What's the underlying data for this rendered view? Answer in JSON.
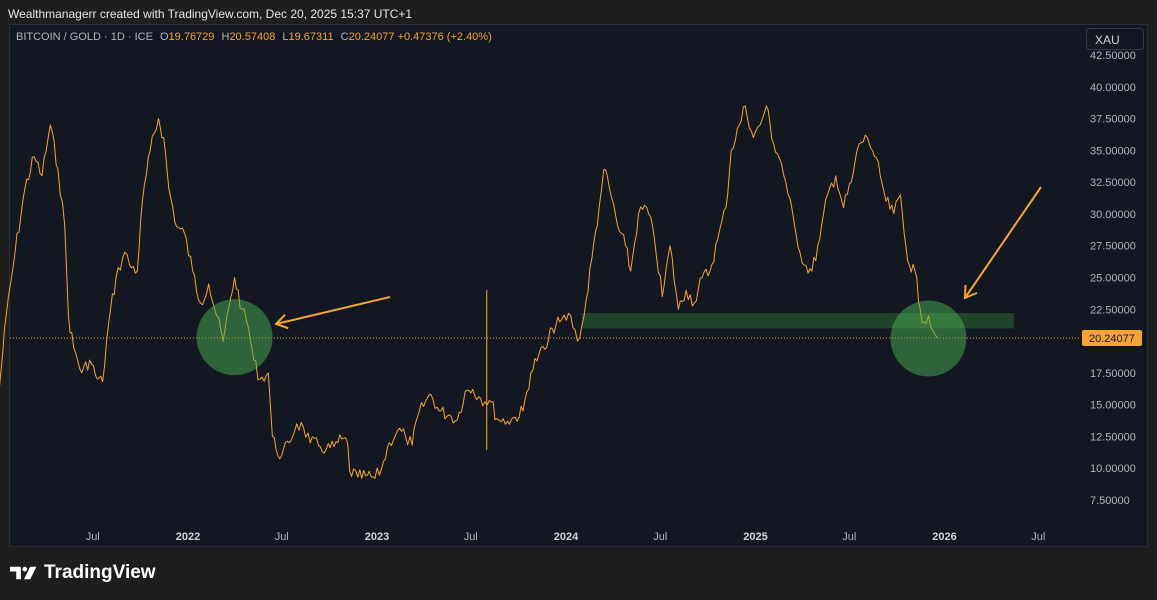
{
  "topbar": {
    "text": "Wealthmanagerr created with TradingView.com, Dec 20, 2025 15:37 UTC+1"
  },
  "header": {
    "symbol": "BITCOIN / GOLD · 1D · ICE",
    "o_label": "O",
    "o_value": "19.76729",
    "h_label": "H",
    "h_value": "20.57408",
    "l_label": "L",
    "l_value": "19.67311",
    "c_label": "C",
    "c_value": "20.24077",
    "change": "+0.47376 (+2.40%)"
  },
  "xau_button": "XAU",
  "footer": {
    "brand": "TradingView"
  },
  "colors": {
    "price": "#f7a531",
    "background": "#131722",
    "zone": "#2e7d32",
    "circle": "#4caf50",
    "arrow": "#f7a531"
  },
  "chart_data": {
    "type": "line",
    "y_ticks": [
      "7.50000",
      "10.00000",
      "12.50000",
      "15.00000",
      "17.50000",
      "20.00000",
      "22.50000",
      "25.00000",
      "27.50000",
      "30.00000",
      "32.50000",
      "35.00000",
      "37.50000",
      "40.00000",
      "42.50000"
    ],
    "y_tick_values": [
      7.5,
      10,
      12.5,
      15,
      17.5,
      20,
      22.5,
      25,
      27.5,
      30,
      32.5,
      35,
      37.5,
      40,
      42.5
    ],
    "ylim": [
      6.5,
      43.5
    ],
    "x_ticks": [
      "Jul",
      "2022",
      "Jul",
      "2023",
      "Jul",
      "2024",
      "Jul",
      "2025",
      "Jul",
      "2026",
      "Jul"
    ],
    "x_tick_dates": [
      "2021-07-01",
      "2022-01-01",
      "2022-07-01",
      "2023-01-01",
      "2023-07-01",
      "2024-01-01",
      "2024-07-01",
      "2025-01-01",
      "2025-07-01",
      "2026-01-01",
      "2026-07-01"
    ],
    "bold_x_ticks": [
      "2022",
      "2023",
      "2024",
      "2025",
      "2026"
    ],
    "last_price_label": "20.24077",
    "last_price": 20.24077,
    "support_zone": {
      "from": "2024-02-01",
      "to": "2026-05-15",
      "low": 21.0,
      "high": 22.2
    },
    "highlight_circles": [
      {
        "date": "2022-04-01",
        "value": 20.3
      },
      {
        "date": "2025-12-01",
        "value": 20.2
      }
    ],
    "vertical_marker_date": "2023-08-01",
    "series": [
      {
        "points": [
          [
            "2021-01-01",
            16.0
          ],
          [
            "2021-01-15",
            22.0
          ],
          [
            "2021-02-01",
            27.0
          ],
          [
            "2021-02-20",
            32.0
          ],
          [
            "2021-03-10",
            34.5
          ],
          [
            "2021-03-25",
            33.0
          ],
          [
            "2021-04-10",
            37.0
          ],
          [
            "2021-04-25",
            33.5
          ],
          [
            "2021-05-08",
            29.0
          ],
          [
            "2021-05-15",
            22.0
          ],
          [
            "2021-05-25",
            19.5
          ],
          [
            "2021-06-10",
            17.5
          ],
          [
            "2021-06-25",
            18.5
          ],
          [
            "2021-07-10",
            17.0
          ],
          [
            "2021-07-20",
            16.8
          ],
          [
            "2021-08-01",
            21.5
          ],
          [
            "2021-08-15",
            25.0
          ],
          [
            "2021-09-01",
            27.0
          ],
          [
            "2021-09-10",
            26.0
          ],
          [
            "2021-09-25",
            25.5
          ],
          [
            "2021-10-05",
            31.0
          ],
          [
            "2021-10-20",
            35.0
          ],
          [
            "2021-11-05",
            37.5
          ],
          [
            "2021-11-15",
            36.0
          ],
          [
            "2021-11-25",
            32.0
          ],
          [
            "2021-12-10",
            29.0
          ],
          [
            "2021-12-25",
            28.5
          ],
          [
            "2022-01-10",
            25.5
          ],
          [
            "2022-01-25",
            23.0
          ],
          [
            "2022-02-10",
            24.5
          ],
          [
            "2022-02-25",
            22.0
          ],
          [
            "2022-03-10",
            20.0
          ],
          [
            "2022-03-25",
            23.5
          ],
          [
            "2022-04-01",
            25.0
          ],
          [
            "2022-04-15",
            22.5
          ],
          [
            "2022-04-28",
            21.0
          ],
          [
            "2022-05-08",
            18.5
          ],
          [
            "2022-05-20",
            17.0
          ],
          [
            "2022-06-05",
            17.5
          ],
          [
            "2022-06-13",
            12.5
          ],
          [
            "2022-06-20",
            11.5
          ],
          [
            "2022-07-01",
            11.0
          ],
          [
            "2022-07-15",
            12.0
          ],
          [
            "2022-07-30",
            13.5
          ],
          [
            "2022-08-12",
            13.2
          ],
          [
            "2022-08-25",
            12.0
          ],
          [
            "2022-09-10",
            11.8
          ],
          [
            "2022-09-25",
            11.5
          ],
          [
            "2022-10-10",
            11.7
          ],
          [
            "2022-10-25",
            12.3
          ],
          [
            "2022-11-05",
            12.0
          ],
          [
            "2022-11-09",
            9.8
          ],
          [
            "2022-11-25",
            9.3
          ],
          [
            "2022-12-10",
            9.4
          ],
          [
            "2022-12-28",
            9.2
          ],
          [
            "2023-01-10",
            10.0
          ],
          [
            "2023-01-25",
            12.0
          ],
          [
            "2023-02-10",
            13.0
          ],
          [
            "2023-02-25",
            12.5
          ],
          [
            "2023-03-10",
            11.8
          ],
          [
            "2023-03-20",
            14.0
          ],
          [
            "2023-04-05",
            15.3
          ],
          [
            "2023-04-15",
            15.8
          ],
          [
            "2023-05-01",
            14.5
          ],
          [
            "2023-05-20",
            14.2
          ],
          [
            "2023-06-05",
            13.8
          ],
          [
            "2023-06-20",
            16.0
          ],
          [
            "2023-07-05",
            16.2
          ],
          [
            "2023-07-20",
            15.5
          ],
          [
            "2023-08-10",
            15.2
          ],
          [
            "2023-08-20",
            13.9
          ],
          [
            "2023-09-10",
            13.7
          ],
          [
            "2023-09-25",
            14.0
          ],
          [
            "2023-10-10",
            14.5
          ],
          [
            "2023-10-25",
            17.5
          ],
          [
            "2023-11-10",
            19.0
          ],
          [
            "2023-11-25",
            19.5
          ],
          [
            "2023-12-05",
            21.0
          ],
          [
            "2023-12-20",
            21.5
          ],
          [
            "2024-01-10",
            22.0
          ],
          [
            "2024-01-23",
            20.0
          ],
          [
            "2024-02-05",
            22.0
          ],
          [
            "2024-02-20",
            26.5
          ],
          [
            "2024-03-05",
            30.5
          ],
          [
            "2024-03-14",
            33.5
          ],
          [
            "2024-03-25",
            32.0
          ],
          [
            "2024-04-10",
            29.0
          ],
          [
            "2024-04-25",
            27.5
          ],
          [
            "2024-05-05",
            25.5
          ],
          [
            "2024-05-20",
            30.0
          ],
          [
            "2024-06-05",
            30.5
          ],
          [
            "2024-06-20",
            28.0
          ],
          [
            "2024-07-05",
            23.5
          ],
          [
            "2024-07-20",
            27.5
          ],
          [
            "2024-08-05",
            22.5
          ],
          [
            "2024-08-20",
            24.0
          ],
          [
            "2024-09-05",
            23.0
          ],
          [
            "2024-09-20",
            25.0
          ],
          [
            "2024-10-05",
            25.5
          ],
          [
            "2024-10-20",
            28.0
          ],
          [
            "2024-11-05",
            30.5
          ],
          [
            "2024-11-15",
            35.0
          ],
          [
            "2024-12-01",
            37.0
          ],
          [
            "2024-12-12",
            38.5
          ],
          [
            "2024-12-28",
            36.0
          ],
          [
            "2025-01-10",
            37.0
          ],
          [
            "2025-01-22",
            38.5
          ],
          [
            "2025-02-05",
            35.5
          ],
          [
            "2025-02-20",
            34.0
          ],
          [
            "2025-03-05",
            31.5
          ],
          [
            "2025-03-20",
            28.5
          ],
          [
            "2025-04-05",
            26.0
          ],
          [
            "2025-04-20",
            25.5
          ],
          [
            "2025-05-05",
            28.0
          ],
          [
            "2025-05-20",
            31.5
          ],
          [
            "2025-06-05",
            33.0
          ],
          [
            "2025-06-20",
            30.5
          ],
          [
            "2025-07-05",
            32.5
          ],
          [
            "2025-07-20",
            35.5
          ],
          [
            "2025-08-05",
            36.0
          ],
          [
            "2025-08-15",
            35.0
          ],
          [
            "2025-08-30",
            33.0
          ],
          [
            "2025-09-10",
            31.0
          ],
          [
            "2025-09-25",
            30.0
          ],
          [
            "2025-10-08",
            31.5
          ],
          [
            "2025-10-15",
            28.5
          ],
          [
            "2025-10-25",
            26.0
          ],
          [
            "2025-11-05",
            25.5
          ],
          [
            "2025-11-15",
            22.5
          ],
          [
            "2025-11-22",
            21.5
          ],
          [
            "2025-12-01",
            22.0
          ],
          [
            "2025-12-10",
            20.8
          ],
          [
            "2025-12-19",
            20.24
          ]
        ]
      }
    ]
  }
}
